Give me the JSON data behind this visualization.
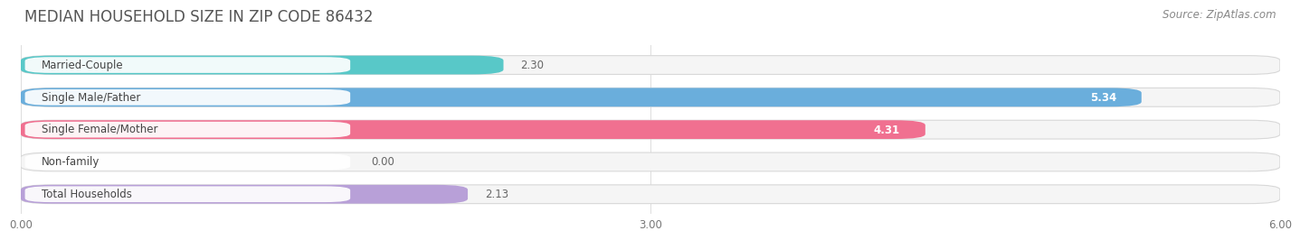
{
  "title": "MEDIAN HOUSEHOLD SIZE IN ZIP CODE 86432",
  "source": "Source: ZipAtlas.com",
  "categories": [
    "Married-Couple",
    "Single Male/Father",
    "Single Female/Mother",
    "Non-family",
    "Total Households"
  ],
  "values": [
    2.3,
    5.34,
    4.31,
    0.0,
    2.13
  ],
  "bar_colors": [
    "#58c8c8",
    "#6aaedc",
    "#f07090",
    "#f5c99a",
    "#b8a0d8"
  ],
  "xlim": [
    0,
    6.0
  ],
  "xticks": [
    0.0,
    3.0,
    6.0
  ],
  "xtick_labels": [
    "0.00",
    "3.00",
    "6.00"
  ],
  "bg_color": "#ffffff",
  "bar_bg_color": "#f0f0f0",
  "title_fontsize": 12,
  "source_fontsize": 8.5,
  "label_fontsize": 8.5,
  "value_fontsize": 8.5
}
